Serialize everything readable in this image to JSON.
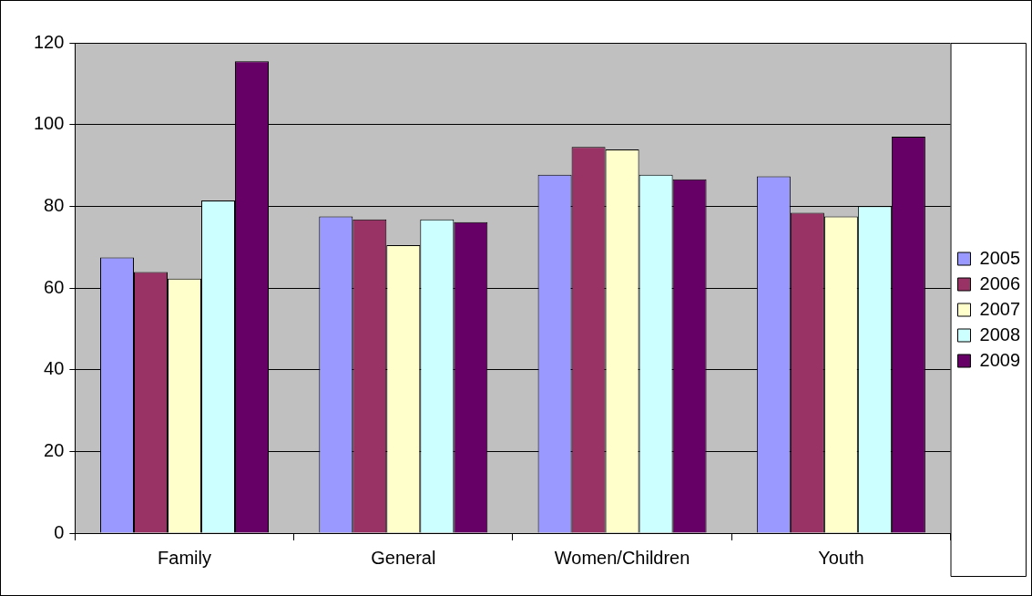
{
  "chart_data": {
    "type": "bar",
    "categories": [
      "Family",
      "General",
      "Women/Children",
      "Youth"
    ],
    "series": [
      {
        "name": "2005",
        "color": "#9999ff",
        "values": [
          67.5,
          77.5,
          87.7,
          87.3
        ]
      },
      {
        "name": "2006",
        "color": "#993366",
        "values": [
          63.9,
          76.8,
          94.5,
          78.4
        ]
      },
      {
        "name": "2007",
        "color": "#ffffcc",
        "values": [
          62.3,
          70.5,
          93.9,
          77.5
        ]
      },
      {
        "name": "2008",
        "color": "#ccffff",
        "values": [
          81.4,
          76.8,
          87.7,
          80
        ]
      },
      {
        "name": "2009",
        "color": "#660066",
        "values": [
          115.5,
          76.1,
          86.6,
          97
        ]
      }
    ],
    "ylim": [
      0,
      120
    ],
    "yticks": [
      0,
      20,
      40,
      60,
      80,
      100,
      120
    ],
    "grid": "y",
    "legend": "right"
  }
}
